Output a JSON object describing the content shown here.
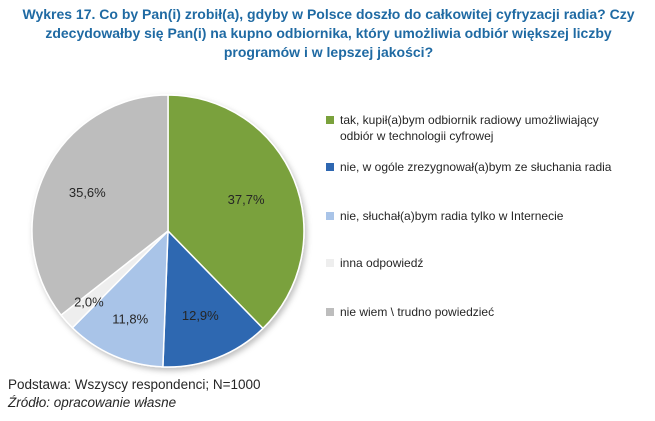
{
  "title_lines": [
    "Wykres 17. Co by Pan(i) zrobił(a), gdyby w Polsce doszło do całkowitej cyfryzacji radia? Czy",
    "zdecydowałby się Pan(i) na kupno odbiornika, który umożliwia odbiór większej liczby",
    "programów i w lepszej jakości?"
  ],
  "chart_data": {
    "type": "pie",
    "title": "Wykres 17. Co by Pan(i) zrobił(a), gdyby w Polsce doszło do całkowitej cyfryzacji radia? Czy zdecydowałby się Pan(i) na kupno odbiornika, który umożliwia odbiór większej liczby programów i w lepszej jakości?",
    "start_angle_deg": 0,
    "direction": "clockwise",
    "legend_position": "right",
    "slices": [
      {
        "legend_lines": [
          "tak, kupił(a)bym odbiornik radiowy umożliwiający",
          "odbiór w technologii cyfrowej"
        ],
        "value": 37.7,
        "label": "37,7%",
        "color": "#7aa13c"
      },
      {
        "legend_lines": [
          "nie, w ogóle zrezygnował(a)bym ze słuchania radia"
        ],
        "value": 12.9,
        "label": "12,9%",
        "color": "#2e67b1"
      },
      {
        "legend_lines": [
          "nie, słuchał(a)bym radia tylko w Internecie"
        ],
        "value": 11.8,
        "label": "11,8%",
        "color": "#a9c4e8"
      },
      {
        "legend_lines": [
          "inna odpowiedź"
        ],
        "value": 2.0,
        "label": "2,0%",
        "color": "#eeeeee"
      },
      {
        "legend_lines": [
          "nie wiem \\ trudno powiedzieć"
        ],
        "value": 35.6,
        "label": "35,6%",
        "color": "#bdbdbd"
      }
    ]
  },
  "footer": {
    "base": "Podstawa: Wszyscy respondenci; N=1000",
    "source": "Źródło: opracowanie własne"
  }
}
